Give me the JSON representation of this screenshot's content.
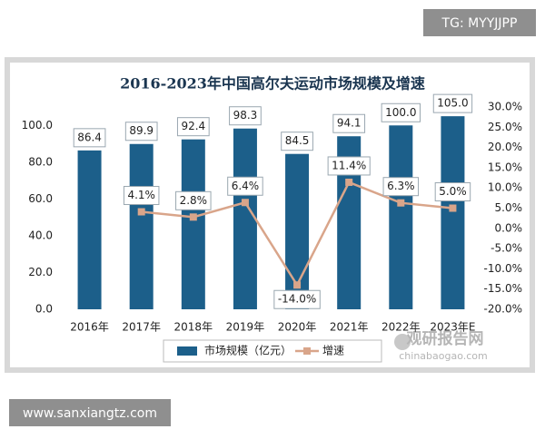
{
  "chart_data": {
    "type": "bar-line",
    "title": "2016-2023年中国高尔夫运动市场规模及增速",
    "categories": [
      "2016年",
      "2017年",
      "2018年",
      "2019年",
      "2020年",
      "2021年",
      "2022年",
      "2023年E"
    ],
    "series": [
      {
        "name": "市场规模（亿元）",
        "type": "bar",
        "color": "#1c5f8a",
        "values": [
          86.4,
          89.9,
          92.4,
          98.3,
          84.5,
          94.1,
          100.0,
          105.0
        ],
        "value_labels": [
          "86.4",
          "89.9",
          "92.4",
          "98.3",
          "84.5",
          "94.1",
          "100.0",
          "105.0"
        ]
      },
      {
        "name": "增速",
        "type": "line",
        "axis": "y2",
        "color": "#d9a58a",
        "values": [
          null,
          4.1,
          2.8,
          6.4,
          -14.0,
          11.4,
          6.3,
          5.0
        ],
        "value_labels": [
          null,
          "4.1%",
          "2.8%",
          "6.4%",
          "-14.0%",
          "11.4%",
          "6.3%",
          "5.0%"
        ]
      }
    ],
    "ylim": [
      0,
      110
    ],
    "yticks": [
      {
        "value": 0,
        "label": "0.0"
      },
      {
        "value": 20,
        "label": "20.0"
      },
      {
        "value": 40,
        "label": "40.0"
      },
      {
        "value": 60,
        "label": "60.0"
      },
      {
        "value": 80,
        "label": "80.0"
      },
      {
        "value": 100,
        "label": "100.0"
      }
    ],
    "y2lim": [
      -20,
      30
    ],
    "y2ticks": [
      {
        "value": -20,
        "label": "-20.0%"
      },
      {
        "value": -15,
        "label": "-15.0%"
      },
      {
        "value": -10,
        "label": "-10.0%"
      },
      {
        "value": -5,
        "label": "-5.0%"
      },
      {
        "value": 0,
        "label": "0.0%"
      },
      {
        "value": 5,
        "label": "5.0%"
      },
      {
        "value": 10,
        "label": "10.0%"
      },
      {
        "value": 15,
        "label": "15.0%"
      },
      {
        "value": 20,
        "label": "20.0%"
      },
      {
        "value": 25,
        "label": "25.0%"
      },
      {
        "value": 30,
        "label": "30.0%"
      }
    ],
    "grid": false,
    "legend": "bottom"
  },
  "overlays": {
    "tag": "TG: MYYJJPP",
    "site": "www.sanxiangtz.com",
    "logo_name": "观研报告网",
    "logo_url": "chinabaogao.com"
  }
}
